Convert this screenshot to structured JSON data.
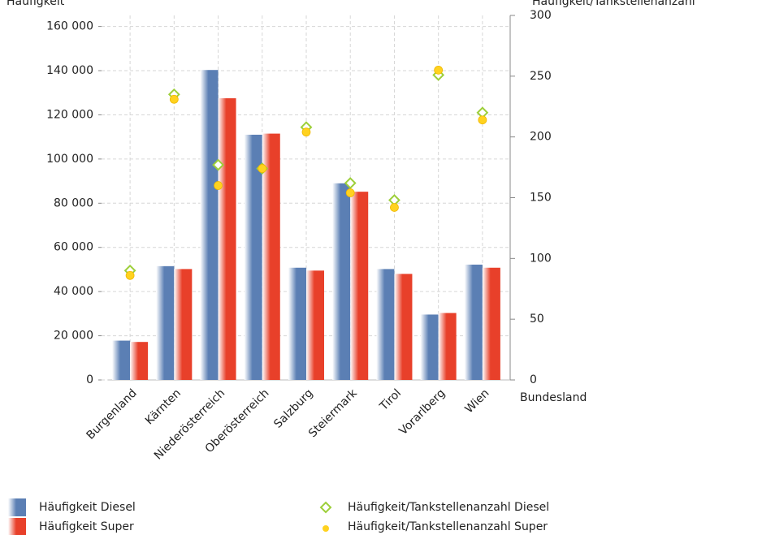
{
  "chart_data": {
    "type": "bar",
    "y_label": "Häufigkeit",
    "y2_label": "Häufigkeit/Tankstellenanzahl",
    "x_label": "Bundesland",
    "categories": [
      "Burgenland",
      "Kärnten",
      "Niederösterreich",
      "Oberösterreich",
      "Salzburg",
      "Steiermark",
      "Tirol",
      "Vorarlberg",
      "Wien"
    ],
    "series": [
      {
        "name": "Häufigkeit Diesel",
        "type": "bar",
        "color": "#5b7fb4",
        "values": [
          17800,
          51500,
          140300,
          111000,
          50800,
          89000,
          50200,
          29600,
          52200
        ]
      },
      {
        "name": "Häufigkeit Super",
        "type": "bar",
        "color": "#e8402a",
        "values": [
          17200,
          50200,
          127500,
          111500,
          49500,
          85200,
          48000,
          30300,
          50800
        ]
      },
      {
        "name": "Häufigkeit/Tankstellenanzahl Diesel",
        "type": "scatter",
        "marker": "diamond",
        "axis": "y2",
        "color": "#9dcf3a",
        "values": [
          90,
          235,
          177,
          174,
          208,
          162,
          148,
          251,
          220
        ]
      },
      {
        "name": "Häufigkeit/Tankstellenanzahl Super",
        "type": "scatter",
        "marker": "circle",
        "axis": "y2",
        "color": "#ffd21f",
        "values": [
          86,
          231,
          160,
          174,
          204,
          154,
          142,
          255,
          214
        ]
      }
    ],
    "ylim": [
      0,
      165000
    ],
    "yticks": [
      {
        "value": 0,
        "label": "0"
      },
      {
        "value": 20000,
        "label": "20 000"
      },
      {
        "value": 40000,
        "label": "40 000"
      },
      {
        "value": 60000,
        "label": "60 000"
      },
      {
        "value": 80000,
        "label": "80 000"
      },
      {
        "value": 100000,
        "label": "100 000"
      },
      {
        "value": 120000,
        "label": "120 000"
      },
      {
        "value": 140000,
        "label": "140 000"
      },
      {
        "value": 160000,
        "label": "160 000"
      }
    ],
    "y2lim": [
      0,
      300
    ],
    "y2ticks": [
      0,
      50,
      100,
      150,
      200,
      250,
      300
    ],
    "grid": true
  }
}
